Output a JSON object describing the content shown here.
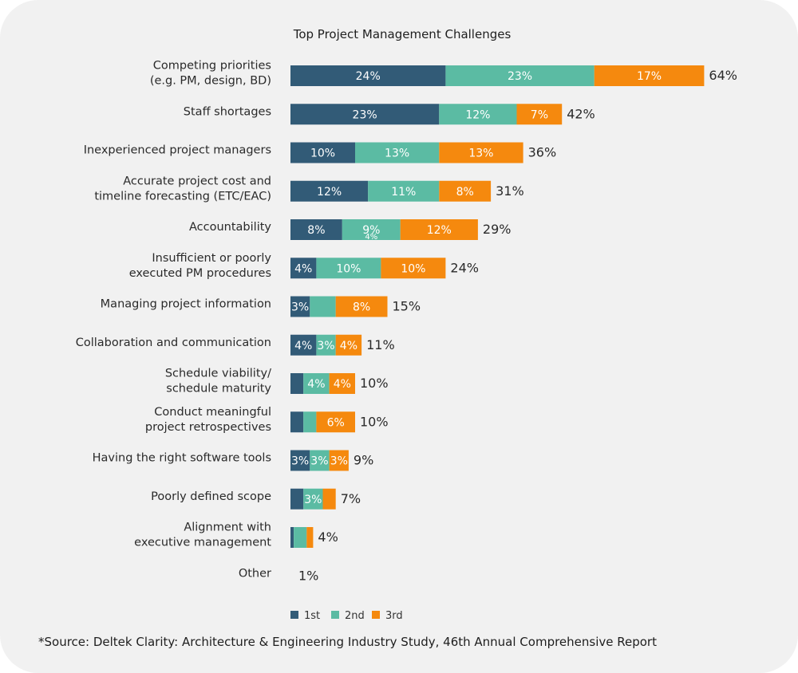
{
  "chart_data": {
    "type": "bar",
    "orientation": "horizontal",
    "stacked": true,
    "title": "Top Project Management Challenges",
    "categories": [
      [
        "Competing priorities",
        "(e.g. PM, design, BD)"
      ],
      [
        "Staff shortages"
      ],
      [
        "Inexperienced project managers"
      ],
      [
        "Accurate project cost and",
        "timeline forecasting (ETC/EAC)"
      ],
      [
        "Accountability"
      ],
      [
        "Insufficient or poorly",
        "executed PM procedures"
      ],
      [
        "Managing project information"
      ],
      [
        "Collaboration and communication"
      ],
      [
        "Schedule viability/",
        "schedule maturity"
      ],
      [
        "Conduct meaningful",
        "project retrospectives"
      ],
      [
        "Having the right software tools"
      ],
      [
        "Poorly defined scope"
      ],
      [
        "Alignment with",
        "executive management"
      ],
      [
        "Other"
      ]
    ],
    "series": [
      {
        "name": "1st",
        "color": "#325b77",
        "values": [
          24,
          23,
          10,
          12,
          8,
          4,
          3,
          4,
          2,
          2,
          3,
          2,
          0.5,
          0
        ],
        "labels": [
          "24%",
          "23%",
          "10%",
          "12%",
          "8%",
          "4%",
          "3%",
          "4%",
          "",
          "",
          "3%",
          "",
          "",
          ""
        ]
      },
      {
        "name": "2nd",
        "color": "#5bbba3",
        "values": [
          23,
          12,
          13,
          11,
          9,
          10,
          4,
          3,
          4,
          2,
          3,
          3,
          2,
          0
        ],
        "labels": [
          "23%",
          "12%",
          "13%",
          "11%",
          "9%",
          "10%",
          "",
          "3%",
          "4%",
          "",
          "3%",
          "3%",
          "",
          ""
        ]
      },
      {
        "name": "3rd",
        "color": "#f5890e",
        "values": [
          17,
          7,
          13,
          8,
          12,
          10,
          8,
          4,
          4,
          6,
          3,
          2,
          1,
          0
        ],
        "labels": [
          "17%",
          "7%",
          "13%",
          "8%",
          "12%",
          "10%",
          "8%",
          "4%",
          "4%",
          "6%",
          "3%",
          "",
          "",
          ""
        ]
      }
    ],
    "totals": [
      "64%",
      "42%",
      "36%",
      "31%",
      "29%",
      "24%",
      "15%",
      "11%",
      "10%",
      "10%",
      "9%",
      "7%",
      "4%",
      "1%"
    ],
    "annotation": "4%",
    "xlim": [
      0,
      64
    ],
    "grid": false,
    "legend_position": "bottom-center"
  },
  "source": "*Source: Deltek Clarity: Architecture & Engineering Industry Study, 46th Annual Comprehensive Report"
}
